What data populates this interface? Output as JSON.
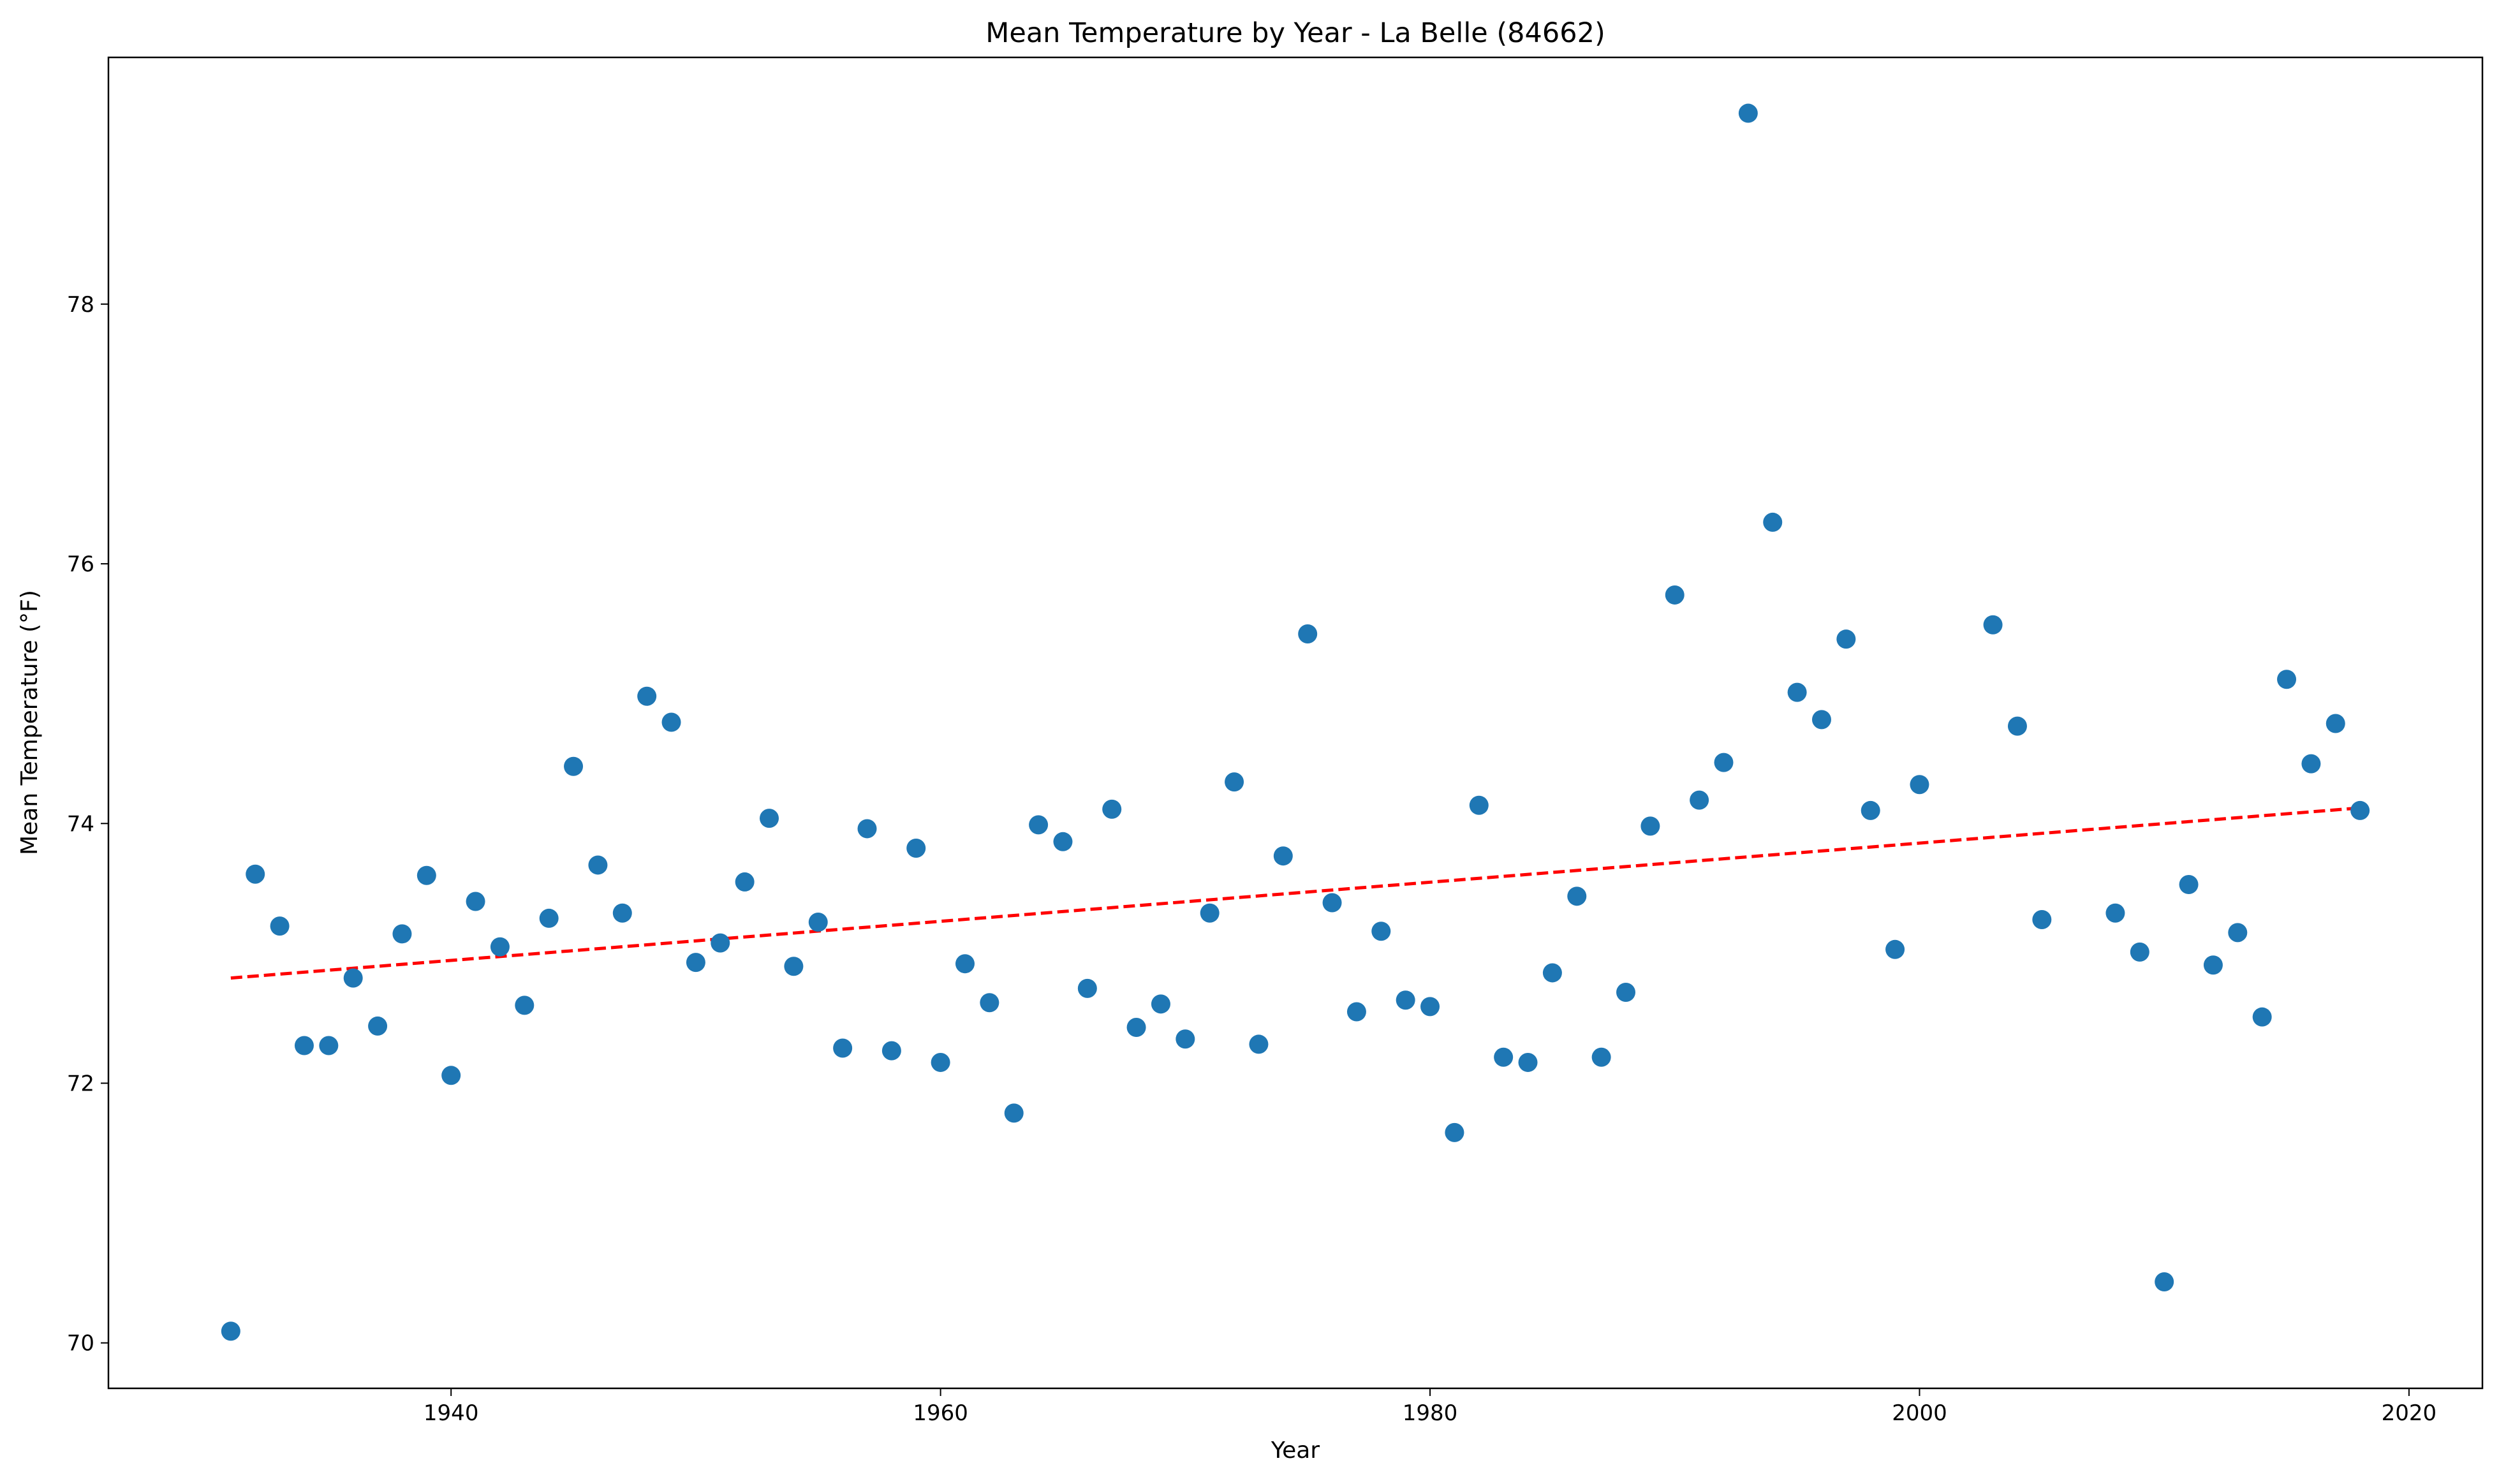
{
  "chart_data": {
    "type": "scatter",
    "title": "Mean Temperature by Year - La Belle (84662)",
    "xlabel": "Year",
    "ylabel": "Mean Temperature (°F)",
    "xlim": [
      1926,
      2023
    ],
    "ylim": [
      69.65,
      79.9
    ],
    "xticks": [
      1940,
      1960,
      1980,
      2000,
      2020
    ],
    "yticks": [
      70,
      72,
      74,
      76,
      78
    ],
    "grid": false,
    "colors": {
      "points": "#1f77b4",
      "trend": "#ff0000"
    },
    "trend": {
      "x": [
        1931,
        2018
      ],
      "y": [
        72.81,
        74.12
      ]
    },
    "points": [
      [
        1931,
        70.09
      ],
      [
        1932,
        73.61
      ],
      [
        1933,
        73.21
      ],
      [
        1934,
        72.29
      ],
      [
        1935,
        72.29
      ],
      [
        1936,
        72.81
      ],
      [
        1937,
        72.44
      ],
      [
        1938,
        73.15
      ],
      [
        1939,
        73.6
      ],
      [
        1940,
        72.06
      ],
      [
        1941,
        73.4
      ],
      [
        1942,
        73.05
      ],
      [
        1943,
        72.6
      ],
      [
        1944,
        73.27
      ],
      [
        1945,
        74.44
      ],
      [
        1946,
        73.68
      ],
      [
        1947,
        73.31
      ],
      [
        1948,
        74.98
      ],
      [
        1949,
        74.78
      ],
      [
        1950,
        72.93
      ],
      [
        1951,
        73.08
      ],
      [
        1952,
        73.55
      ],
      [
        1953,
        74.04
      ],
      [
        1954,
        72.9
      ],
      [
        1955,
        73.24
      ],
      [
        1956,
        72.27
      ],
      [
        1957,
        73.96
      ],
      [
        1958,
        72.25
      ],
      [
        1959,
        73.81
      ],
      [
        1960,
        72.16
      ],
      [
        1961,
        72.92
      ],
      [
        1962,
        72.62
      ],
      [
        1963,
        71.77
      ],
      [
        1964,
        73.99
      ],
      [
        1965,
        73.86
      ],
      [
        1966,
        72.73
      ],
      [
        1967,
        74.11
      ],
      [
        1968,
        72.43
      ],
      [
        1969,
        72.61
      ],
      [
        1970,
        72.34
      ],
      [
        1971,
        73.31
      ],
      [
        1972,
        74.32
      ],
      [
        1973,
        72.3
      ],
      [
        1974,
        73.75
      ],
      [
        1975,
        75.46
      ],
      [
        1976,
        73.39
      ],
      [
        1977,
        72.55
      ],
      [
        1978,
        73.17
      ],
      [
        1979,
        72.64
      ],
      [
        1980,
        72.59
      ],
      [
        1981,
        71.62
      ],
      [
        1982,
        74.14
      ],
      [
        1983,
        72.2
      ],
      [
        1984,
        72.16
      ],
      [
        1985,
        72.85
      ],
      [
        1986,
        73.44
      ],
      [
        1987,
        72.2
      ],
      [
        1988,
        72.7
      ],
      [
        1989,
        73.98
      ],
      [
        1990,
        75.76
      ],
      [
        1991,
        74.18
      ],
      [
        1992,
        74.47
      ],
      [
        1993,
        79.47
      ],
      [
        1994,
        76.32
      ],
      [
        1995,
        75.01
      ],
      [
        1996,
        74.8
      ],
      [
        1997,
        75.42
      ],
      [
        1998,
        74.1
      ],
      [
        1999,
        73.03
      ],
      [
        2000,
        74.3
      ],
      [
        2003,
        75.53
      ],
      [
        2004,
        74.75
      ],
      [
        2005,
        73.26
      ],
      [
        2008,
        73.31
      ],
      [
        2009,
        73.01
      ],
      [
        2010,
        70.47
      ],
      [
        2011,
        73.53
      ],
      [
        2012,
        72.91
      ],
      [
        2013,
        73.16
      ],
      [
        2014,
        72.51
      ],
      [
        2015,
        75.11
      ],
      [
        2016,
        74.46
      ],
      [
        2017,
        74.77
      ],
      [
        2018,
        74.1
      ]
    ]
  }
}
